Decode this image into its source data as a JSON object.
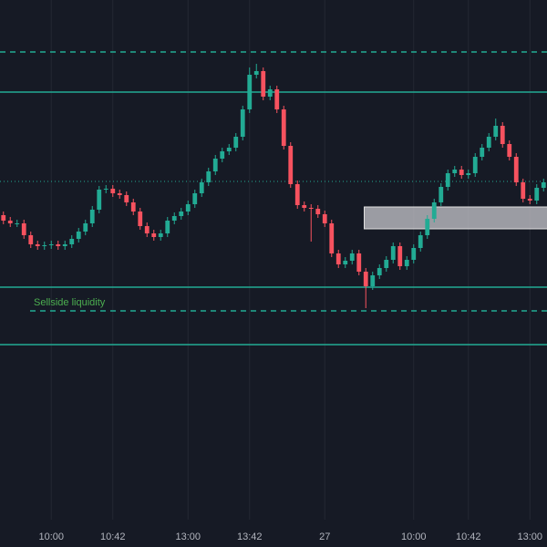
{
  "chart_data": {
    "type": "candlestick",
    "up_color": "#22ab94",
    "down_color": "#f7525f",
    "line_color": "#22ab94",
    "annotation_color": "#4caf50",
    "grid": true,
    "ylim": [
      0,
      570
    ],
    "categories": [
      null,
      null,
      null,
      null,
      null,
      null,
      null,
      "10:00",
      null,
      null,
      null,
      null,
      null,
      null,
      null,
      null,
      "10:42",
      null,
      null,
      null,
      null,
      null,
      null,
      null,
      null,
      null,
      null,
      "13:00",
      null,
      null,
      null,
      null,
      null,
      null,
      null,
      null,
      "13:42",
      null,
      null,
      null,
      null,
      null,
      null,
      null,
      null,
      null,
      null,
      "27",
      null,
      null,
      null,
      null,
      null,
      null,
      null,
      null,
      null,
      null,
      null,
      null,
      "10:00",
      null,
      null,
      null,
      null,
      null,
      null,
      null,
      "10:42",
      null,
      null,
      null,
      null,
      null,
      null,
      null,
      null,
      "13:00",
      null,
      null
    ],
    "open": [
      334,
      328,
      325,
      325,
      312,
      302,
      300,
      301,
      302,
      300,
      302,
      308,
      316,
      325,
      340,
      362,
      363,
      358,
      356,
      348,
      338,
      322,
      314,
      310,
      314,
      328,
      333,
      338,
      346,
      358,
      370,
      382,
      396,
      404,
      408,
      420,
      450,
      488,
      492,
      464,
      472,
      450,
      410,
      368,
      345,
      342,
      341,
      335,
      325,
      292,
      280,
      284,
      292,
      272,
      256,
      268,
      276,
      285,
      300,
      278,
      285,
      298,
      312,
      330,
      348,
      365,
      380,
      384,
      378,
      380,
      398,
      408,
      420,
      432,
      412,
      398,
      370,
      352,
      350,
      364
    ],
    "high": [
      338,
      332,
      329,
      329,
      316,
      306,
      305,
      306,
      306,
      306,
      312,
      320,
      329,
      344,
      366,
      367,
      367,
      362,
      360,
      352,
      342,
      326,
      318,
      318,
      332,
      337,
      342,
      350,
      362,
      374,
      386,
      400,
      408,
      412,
      424,
      454,
      496,
      500,
      496,
      476,
      476,
      454,
      414,
      372,
      349,
      346,
      345,
      339,
      329,
      296,
      288,
      296,
      296,
      276,
      272,
      280,
      289,
      304,
      304,
      289,
      302,
      316,
      334,
      352,
      369,
      384,
      388,
      388,
      384,
      402,
      412,
      424,
      440,
      436,
      416,
      402,
      374,
      356,
      368,
      374
    ],
    "low": [
      324,
      321,
      321,
      308,
      298,
      296,
      296,
      297,
      296,
      296,
      298,
      304,
      312,
      321,
      336,
      358,
      354,
      352,
      344,
      334,
      318,
      310,
      306,
      306,
      310,
      324,
      329,
      334,
      342,
      354,
      366,
      378,
      392,
      400,
      404,
      416,
      446,
      484,
      460,
      460,
      446,
      406,
      364,
      341,
      338,
      305,
      331,
      321,
      288,
      276,
      276,
      280,
      268,
      232,
      252,
      264,
      272,
      281,
      274,
      274,
      281,
      294,
      308,
      326,
      344,
      361,
      376,
      374,
      374,
      376,
      394,
      404,
      416,
      408,
      394,
      366,
      348,
      346,
      346,
      360
    ],
    "close": [
      328,
      325,
      325,
      312,
      302,
      300,
      301,
      302,
      300,
      302,
      308,
      316,
      325,
      340,
      362,
      363,
      358,
      356,
      348,
      338,
      322,
      314,
      310,
      314,
      328,
      333,
      338,
      346,
      358,
      370,
      382,
      396,
      404,
      408,
      420,
      450,
      488,
      492,
      464,
      472,
      450,
      410,
      368,
      345,
      342,
      341,
      335,
      325,
      292,
      280,
      284,
      292,
      272,
      256,
      268,
      276,
      285,
      300,
      278,
      285,
      298,
      312,
      330,
      348,
      365,
      380,
      384,
      378,
      380,
      398,
      408,
      420,
      432,
      412,
      398,
      370,
      352,
      350,
      364,
      370
    ],
    "levels": [
      {
        "value": 513,
        "style": "dashed"
      },
      {
        "value": 469,
        "style": "solid"
      },
      {
        "value": 371,
        "style": "dotted"
      },
      {
        "value": 255,
        "style": "solid"
      },
      {
        "value": 229,
        "style": "dashed",
        "from": 4,
        "label": "Sellside liquidity"
      },
      {
        "value": 192,
        "style": "solid"
      }
    ],
    "zones": [
      {
        "from": 53,
        "low": 319,
        "high": 343
      }
    ]
  }
}
